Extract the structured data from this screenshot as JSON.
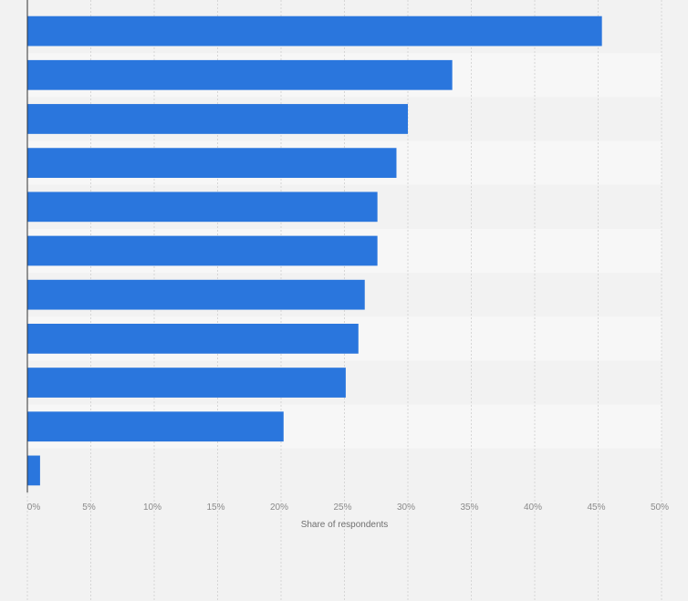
{
  "chart_data": {
    "type": "bar",
    "orientation": "horizontal",
    "categories": [
      "",
      "",
      "",
      "",
      "",
      "",
      "",
      "",
      "",
      "",
      ""
    ],
    "values": [
      45.3,
      33.5,
      30.0,
      29.1,
      27.6,
      27.6,
      26.6,
      26.1,
      25.1,
      20.2,
      1.0
    ],
    "xlabel": "Share of respondents",
    "ylabel": "",
    "xlim": [
      0,
      50
    ],
    "x_ticks": [
      "0%",
      "5%",
      "10%",
      "15%",
      "20%",
      "25%",
      "30%",
      "35%",
      "40%",
      "45%",
      "50%"
    ],
    "grid": "vertical dashed",
    "bar_color": "#2a76dd",
    "row_band_colors": [
      "#f2f2f2",
      "#f7f7f7"
    ]
  }
}
